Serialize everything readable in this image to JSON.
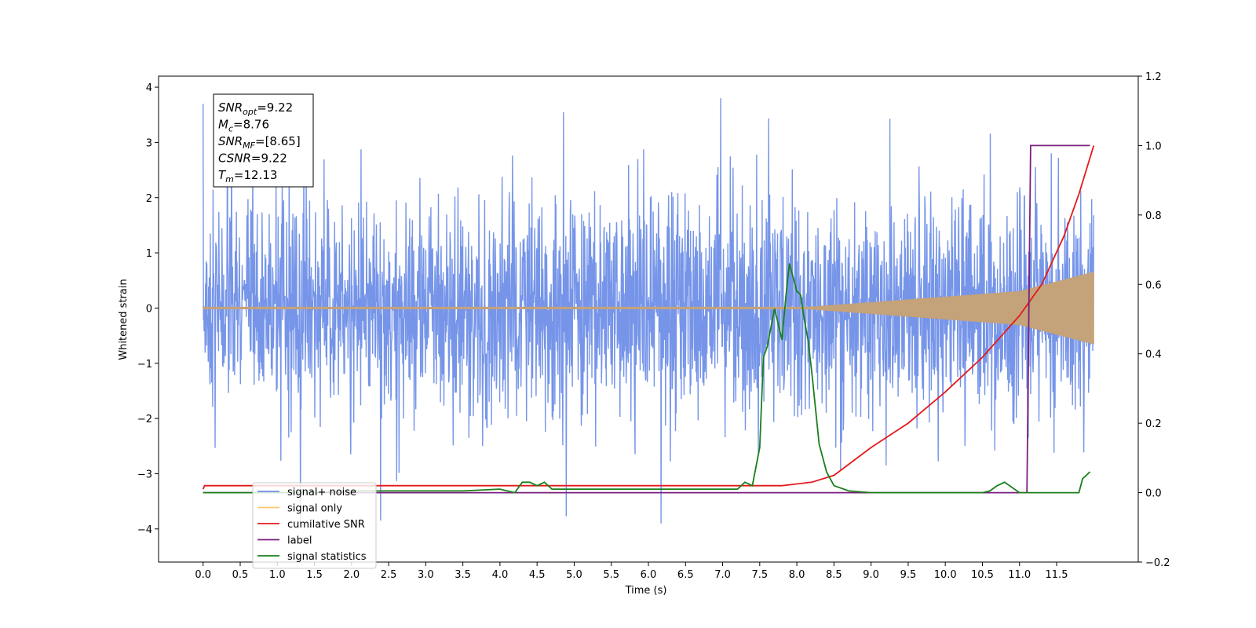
{
  "chart_data": {
    "type": "line",
    "title": "",
    "xlabel": "Time (s)",
    "ylabel": "Whitened strain",
    "xlim": [
      -0.6,
      12.6
    ],
    "ylim": [
      -4.6,
      4.2
    ],
    "y2lim": [
      -0.2,
      1.2
    ],
    "xticks": [
      "0.0",
      "0.5",
      "1.0",
      "1.5",
      "2.0",
      "2.5",
      "3.0",
      "3.5",
      "4.0",
      "4.5",
      "5.0",
      "5.5",
      "6.0",
      "6.5",
      "7.0",
      "7.5",
      "8.0",
      "8.5",
      "9.0",
      "9.5",
      "10.0",
      "10.5",
      "11.0",
      "11.5"
    ],
    "yticks": [
      "4",
      "3",
      "2",
      "1",
      "0",
      "−1",
      "−2",
      "−3",
      "−4"
    ],
    "y2ticks": [
      "1.2",
      "1.0",
      "0.8",
      "0.6",
      "0.4",
      "0.2",
      "0.0",
      "−0.2"
    ],
    "grid": false,
    "legend_position": "bottom-left",
    "annotations": [
      {
        "main": "SNR",
        "sub": "opt",
        "rest": "=9.22"
      },
      {
        "main": "M",
        "sub": "c",
        "rest": "=8.76"
      },
      {
        "main": "SNR",
        "sub": "MF",
        "rest": "=[8.65]"
      },
      {
        "main": "CSNR",
        "sub": "",
        "rest": "=9.22"
      },
      {
        "main": "T",
        "sub": "m",
        "rest": "=12.13"
      }
    ],
    "legend": [
      {
        "label": "signal+ noise",
        "color": "#6f8fe8"
      },
      {
        "label": "signal only",
        "color": "#ffc66b"
      },
      {
        "label": "cumilative SNR",
        "color": "#e41a1c"
      },
      {
        "label": "label",
        "color": "#7b1f7f"
      },
      {
        "label": "signal statistics",
        "color": "#1a7f1a"
      }
    ],
    "series": [
      {
        "name": "signal+ noise",
        "axis": "left",
        "color": "#6f8fe8",
        "x_range": [
          0.0,
          12.0
        ],
        "y_range_approx": [
          -3.9,
          3.8
        ]
      },
      {
        "name": "signal only",
        "axis": "left",
        "color": "#ffc66b",
        "x_range": [
          0.0,
          12.0
        ],
        "envelope": [
          [
            0,
            0.0
          ],
          [
            8.0,
            0.0
          ],
          [
            9.0,
            0.1
          ],
          [
            10.0,
            0.2
          ],
          [
            11.0,
            0.3
          ],
          [
            12.0,
            0.65
          ]
        ]
      },
      {
        "name": "cumilative SNR",
        "axis": "right",
        "color": "#e41a1c",
        "x": [
          0.0,
          0.02,
          7.8,
          8.2,
          8.5,
          9.0,
          9.5,
          10.0,
          10.5,
          11.0,
          11.3,
          11.6,
          11.8,
          12.0
        ],
        "y": [
          0.01,
          0.02,
          0.02,
          0.03,
          0.05,
          0.13,
          0.2,
          0.29,
          0.39,
          0.51,
          0.6,
          0.74,
          0.86,
          1.0
        ]
      },
      {
        "name": "label",
        "axis": "right",
        "color": "#7b1f7f",
        "x": [
          0.0,
          11.1,
          11.15,
          11.95
        ],
        "y": [
          0.0,
          0.0,
          1.0,
          1.0
        ]
      },
      {
        "name": "signal statistics",
        "axis": "right",
        "color": "#1a7f1a",
        "x": [
          0.0,
          0.5,
          1.0,
          1.5,
          2.0,
          2.5,
          3.0,
          3.5,
          4.0,
          4.2,
          4.3,
          4.4,
          4.5,
          4.6,
          4.7,
          5.0,
          5.5,
          6.0,
          6.5,
          7.0,
          7.2,
          7.3,
          7.4,
          7.5,
          7.55,
          7.6,
          7.7,
          7.8,
          7.85,
          7.9,
          7.95,
          8.0,
          8.05,
          8.1,
          8.15,
          8.2,
          8.3,
          8.4,
          8.5,
          8.7,
          9.0,
          9.5,
          10.0,
          10.5,
          10.6,
          10.7,
          10.8,
          11.0,
          11.5,
          11.8,
          11.85,
          11.9,
          11.95
        ],
        "y": [
          0.0,
          0.0,
          0.0,
          0.0,
          0.005,
          0.005,
          0.005,
          0.005,
          0.01,
          0.0,
          0.03,
          0.03,
          0.02,
          0.03,
          0.01,
          0.01,
          0.01,
          0.01,
          0.01,
          0.01,
          0.01,
          0.03,
          0.02,
          0.13,
          0.39,
          0.42,
          0.53,
          0.44,
          0.56,
          0.66,
          0.62,
          0.58,
          0.57,
          0.5,
          0.44,
          0.35,
          0.14,
          0.06,
          0.02,
          0.005,
          0.0,
          0.0,
          0.0,
          0.0,
          0.005,
          0.02,
          0.03,
          0.0,
          0.0,
          0.0,
          0.04,
          0.05,
          0.06
        ]
      }
    ]
  }
}
